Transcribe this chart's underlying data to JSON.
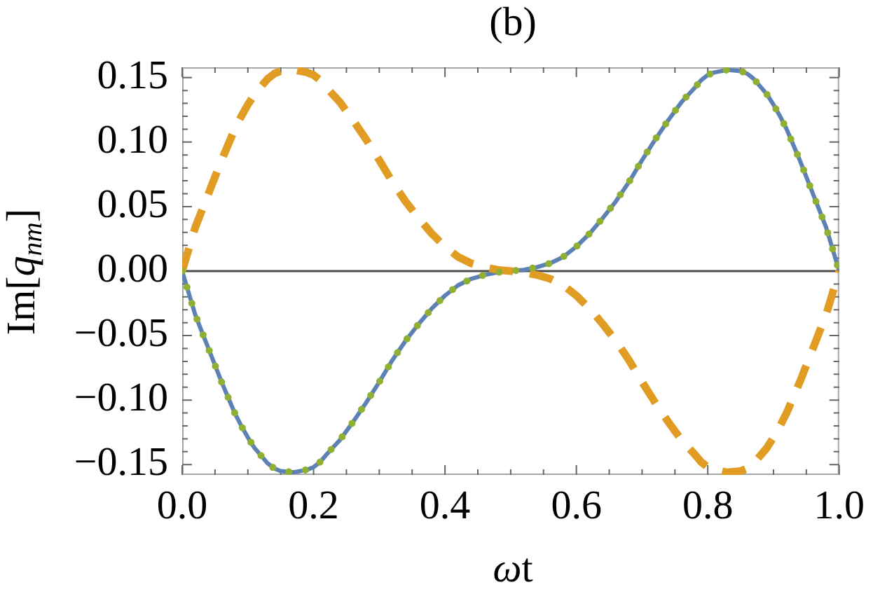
{
  "chart_data": {
    "type": "line",
    "title": "(b)",
    "xlabel": "ωt",
    "ylabel": "Im[q$_{nm}$]",
    "x": [
      0,
      0.01,
      0.02,
      0.03,
      0.04,
      0.05,
      0.06,
      0.07,
      0.08,
      0.09,
      0.1,
      0.11,
      0.12,
      0.13,
      0.14,
      0.15,
      0.17,
      0.19,
      0.2,
      0.21,
      0.22,
      0.24,
      0.26,
      0.28,
      0.3,
      0.32,
      0.34,
      0.36,
      0.38,
      0.4,
      0.42,
      0.44,
      0.46,
      0.48,
      0.5,
      0.52,
      0.54,
      0.56,
      0.58,
      0.6,
      0.62,
      0.64,
      0.66,
      0.68,
      0.7,
      0.72,
      0.74,
      0.76,
      0.78,
      0.79,
      0.8,
      0.81,
      0.83,
      0.85,
      0.86,
      0.87,
      0.88,
      0.89,
      0.9,
      0.91,
      0.92,
      0.93,
      0.94,
      0.95,
      0.96,
      0.97,
      0.98,
      0.99,
      1
    ],
    "series": [
      {
        "color": "#5e81b5",
        "line_style": "solid",
        "values": [
          0,
          -0.017,
          -0.034,
          -0.047,
          -0.06,
          -0.073,
          -0.086,
          -0.098,
          -0.11,
          -0.12,
          -0.129,
          -0.137,
          -0.143,
          -0.149,
          -0.153,
          -0.155,
          -0.156,
          -0.154,
          -0.152,
          -0.148,
          -0.142,
          -0.131,
          -0.117,
          -0.102,
          -0.086,
          -0.069,
          -0.054,
          -0.041,
          -0.029,
          -0.019,
          -0.011,
          -0.006,
          -0.003,
          -0.001,
          0,
          0.001,
          0.003,
          0.006,
          0.011,
          0.019,
          0.029,
          0.041,
          0.054,
          0.069,
          0.086,
          0.102,
          0.117,
          0.131,
          0.142,
          0.148,
          0.152,
          0.154,
          0.156,
          0.155,
          0.153,
          0.149,
          0.143,
          0.137,
          0.129,
          0.12,
          0.11,
          0.098,
          0.086,
          0.073,
          0.06,
          0.047,
          0.034,
          0.017,
          0
        ]
      },
      {
        "color": "#e19c24",
        "line_style": "dashed",
        "values": [
          0,
          0.017,
          0.034,
          0.047,
          0.06,
          0.073,
          0.086,
          0.098,
          0.11,
          0.12,
          0.129,
          0.137,
          0.143,
          0.149,
          0.153,
          0.155,
          0.156,
          0.154,
          0.152,
          0.148,
          0.142,
          0.131,
          0.117,
          0.102,
          0.086,
          0.069,
          0.054,
          0.041,
          0.029,
          0.019,
          0.011,
          0.006,
          0.003,
          0.001,
          0,
          -0.001,
          -0.003,
          -0.006,
          -0.011,
          -0.019,
          -0.029,
          -0.041,
          -0.054,
          -0.069,
          -0.086,
          -0.102,
          -0.117,
          -0.131,
          -0.142,
          -0.148,
          -0.152,
          -0.154,
          -0.156,
          -0.155,
          -0.153,
          -0.149,
          -0.143,
          -0.137,
          -0.129,
          -0.12,
          -0.11,
          -0.098,
          -0.086,
          -0.073,
          -0.06,
          -0.047,
          -0.034,
          -0.017,
          0
        ]
      },
      {
        "color": "#8fb032",
        "line_style": "dotted",
        "values": [
          0,
          -0.017,
          -0.034,
          -0.047,
          -0.06,
          -0.073,
          -0.086,
          -0.098,
          -0.11,
          -0.12,
          -0.129,
          -0.137,
          -0.143,
          -0.149,
          -0.153,
          -0.155,
          -0.156,
          -0.154,
          -0.152,
          -0.148,
          -0.142,
          -0.131,
          -0.117,
          -0.102,
          -0.086,
          -0.069,
          -0.054,
          -0.041,
          -0.029,
          -0.019,
          -0.011,
          -0.006,
          -0.003,
          -0.001,
          0,
          0.001,
          0.003,
          0.006,
          0.011,
          0.019,
          0.029,
          0.041,
          0.054,
          0.069,
          0.086,
          0.102,
          0.117,
          0.131,
          0.142,
          0.148,
          0.152,
          0.154,
          0.156,
          0.155,
          0.153,
          0.149,
          0.143,
          0.137,
          0.129,
          0.12,
          0.11,
          0.098,
          0.086,
          0.073,
          0.06,
          0.047,
          0.034,
          0.017,
          0
        ]
      }
    ],
    "xlim": [
      0,
      1
    ],
    "ylim": [
      -0.158,
      0.158
    ],
    "xticks": [
      {
        "value": 0,
        "label": "0.0"
      },
      {
        "value": 0.05,
        "label": null
      },
      {
        "value": 0.1,
        "label": null
      },
      {
        "value": 0.15,
        "label": null
      },
      0.2,
      {
        "value": 0.25,
        "label": null
      },
      {
        "value": 0.3,
        "label": null
      },
      {
        "value": 0.35,
        "label": null
      },
      0.4,
      {
        "value": 0.45,
        "label": null
      },
      {
        "value": 0.5,
        "label": null
      },
      {
        "value": 0.55,
        "label": null
      },
      0.6,
      {
        "value": 0.65,
        "label": null
      },
      {
        "value": 0.7,
        "label": null
      },
      {
        "value": 0.75,
        "label": null
      },
      0.8,
      {
        "value": 0.85,
        "label": null
      },
      {
        "value": 0.9,
        "label": null
      },
      {
        "value": 0.95,
        "label": null
      },
      {
        "value": 1,
        "label": "1.0"
      }
    ],
    "yticks": [
      {
        "value": -0.15,
        "label": "−0.15"
      },
      {
        "value": -0.14,
        "label": null
      },
      {
        "value": -0.13,
        "label": null
      },
      {
        "value": -0.12,
        "label": null
      },
      {
        "value": -0.11,
        "label": null
      },
      {
        "value": -0.1,
        "label": "−0.10"
      },
      {
        "value": -0.09,
        "label": null
      },
      {
        "value": -0.08,
        "label": null
      },
      {
        "value": -0.07,
        "label": null
      },
      {
        "value": -0.06,
        "label": null
      },
      {
        "value": -0.05,
        "label": "−0.05"
      },
      {
        "value": -0.04,
        "label": null
      },
      {
        "value": -0.03,
        "label": null
      },
      {
        "value": -0.02,
        "label": null
      },
      {
        "value": -0.01,
        "label": null
      },
      {
        "value": 0,
        "label": "0.00"
      },
      {
        "value": 0.01,
        "label": null
      },
      {
        "value": 0.02,
        "label": null
      },
      {
        "value": 0.03,
        "label": null
      },
      {
        "value": 0.04,
        "label": null
      },
      0.05,
      {
        "value": 0.06,
        "label": null
      },
      {
        "value": 0.07,
        "label": null
      },
      {
        "value": 0.08,
        "label": null
      },
      {
        "value": 0.09,
        "label": null
      },
      {
        "value": 0.1,
        "label": "0.10"
      },
      {
        "value": 0.11,
        "label": null
      },
      {
        "value": 0.12,
        "label": null
      },
      {
        "value": 0.13,
        "label": null
      },
      {
        "value": 0.14,
        "label": null
      },
      0.15
    ],
    "ref_lines": [
      {
        "axis": "y",
        "value": 0,
        "color": "#4d4d4d"
      }
    ],
    "grid": false,
    "legend": false,
    "marker": "none"
  }
}
